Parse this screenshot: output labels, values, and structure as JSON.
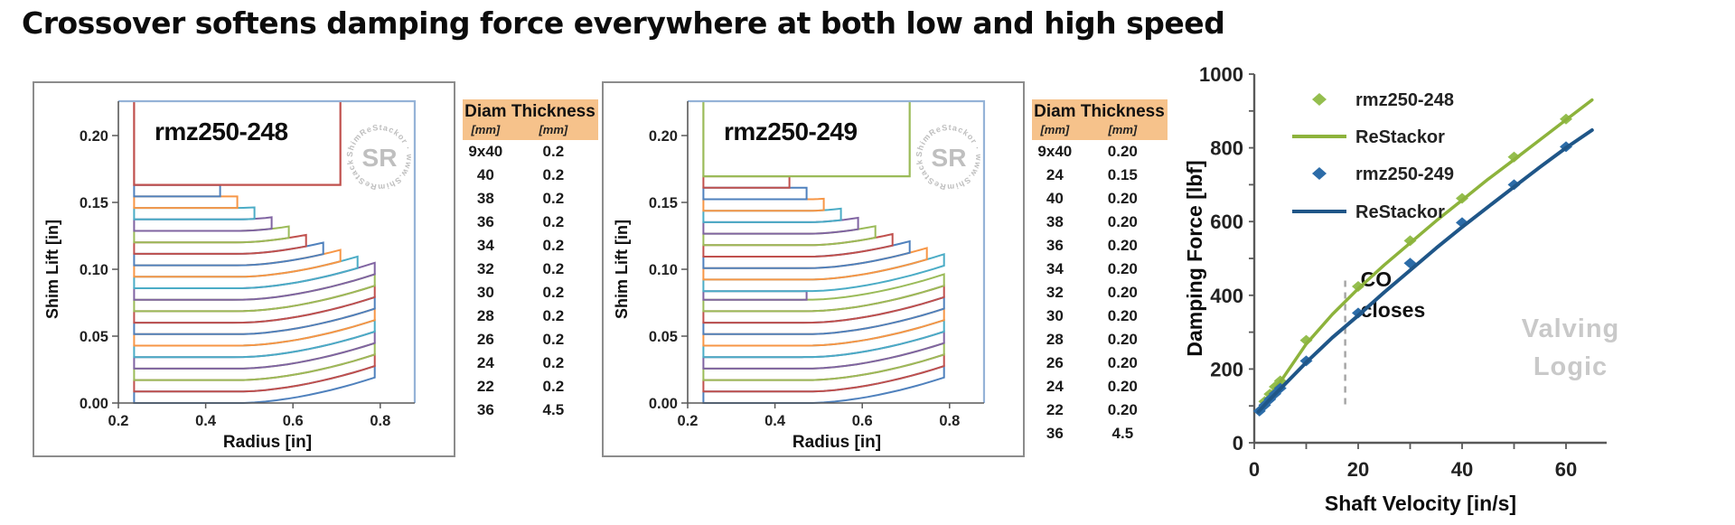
{
  "page_title": "Crossover softens damping force everywhere at both low and high speed",
  "palette": {
    "shim_colors": [
      "#4F81BD",
      "#C0504D",
      "#9BBB59",
      "#8064A2",
      "#4BACC6",
      "#F79646"
    ],
    "frame": "#95B3D7",
    "axis": "#595959",
    "table_header_bg": "#F6C28B",
    "annotation_gray": "#a6a6a6",
    "watermark_gray": "#c9c9c9",
    "logo_gray": "#b4b4b4"
  },
  "logo": {
    "ring_text": "ShimReStackor · www.ShimReStackor.com ·",
    "center_text": "SR"
  },
  "tables": [
    {
      "col1": "Diam",
      "col2": "Thickness",
      "unit1": "[mm]",
      "unit2": "[mm]",
      "rows": [
        [
          "9x40",
          "0.2"
        ],
        [
          "40",
          "0.2"
        ],
        [
          "38",
          "0.2"
        ],
        [
          "36",
          "0.2"
        ],
        [
          "34",
          "0.2"
        ],
        [
          "32",
          "0.2"
        ],
        [
          "30",
          "0.2"
        ],
        [
          "28",
          "0.2"
        ],
        [
          "26",
          "0.2"
        ],
        [
          "24",
          "0.2"
        ],
        [
          "22",
          "0.2"
        ],
        [
          "36",
          "4.5"
        ]
      ]
    },
    {
      "col1": "Diam",
      "col2": "Thickness",
      "unit1": "[mm]",
      "unit2": "[mm]",
      "rows": [
        [
          "9x40",
          "0.20"
        ],
        [
          "24",
          "0.15"
        ],
        [
          "40",
          "0.20"
        ],
        [
          "38",
          "0.20"
        ],
        [
          "36",
          "0.20"
        ],
        [
          "34",
          "0.20"
        ],
        [
          "32",
          "0.20"
        ],
        [
          "30",
          "0.20"
        ],
        [
          "28",
          "0.20"
        ],
        [
          "26",
          "0.20"
        ],
        [
          "24",
          "0.20"
        ],
        [
          "22",
          "0.20"
        ],
        [
          "36",
          "4.5"
        ]
      ]
    }
  ],
  "chart_data": [
    {
      "type": "shim-stack",
      "title": "rmz250-248",
      "xlabel": "Radius [in]",
      "ylabel": "Shim Lift [in]",
      "xlim": [
        0.2,
        0.879
      ],
      "ylim": [
        0,
        0.2257
      ],
      "x_ticks": [
        "0.2",
        "0.4",
        "0.6",
        "0.8"
      ],
      "y_ticks": [
        "0.00",
        "0.05",
        "0.10",
        "0.15",
        "0.20"
      ],
      "stack": [
        {
          "count": 9,
          "diam_mm": 40,
          "thick_mm": 0.2
        },
        {
          "count": 1,
          "diam_mm": 40,
          "thick_mm": 0.2
        },
        {
          "count": 1,
          "diam_mm": 38,
          "thick_mm": 0.2
        },
        {
          "count": 1,
          "diam_mm": 36,
          "thick_mm": 0.2
        },
        {
          "count": 1,
          "diam_mm": 34,
          "thick_mm": 0.2
        },
        {
          "count": 1,
          "diam_mm": 32,
          "thick_mm": 0.2
        },
        {
          "count": 1,
          "diam_mm": 30,
          "thick_mm": 0.2
        },
        {
          "count": 1,
          "diam_mm": 28,
          "thick_mm": 0.2
        },
        {
          "count": 1,
          "diam_mm": 26,
          "thick_mm": 0.2
        },
        {
          "count": 1,
          "diam_mm": 24,
          "thick_mm": 0.2
        },
        {
          "count": 1,
          "diam_mm": 22,
          "thick_mm": 0.2
        },
        {
          "count": 1,
          "diam_mm": 36,
          "thick_mm": 4.5,
          "role": "clamp"
        }
      ]
    },
    {
      "type": "shim-stack",
      "title": "rmz250-249",
      "xlabel": "Radius [in]",
      "ylabel": "Shim Lift [in]",
      "xlim": [
        0.2,
        0.879
      ],
      "ylim": [
        0,
        0.2257
      ],
      "x_ticks": [
        "0.2",
        "0.4",
        "0.6",
        "0.8"
      ],
      "y_ticks": [
        "0.00",
        "0.05",
        "0.10",
        "0.15",
        "0.20"
      ],
      "stack": [
        {
          "count": 9,
          "diam_mm": 40,
          "thick_mm": 0.2
        },
        {
          "count": 1,
          "diam_mm": 24,
          "thick_mm": 0.15,
          "role": "crossover"
        },
        {
          "count": 1,
          "diam_mm": 40,
          "thick_mm": 0.2
        },
        {
          "count": 1,
          "diam_mm": 38,
          "thick_mm": 0.2
        },
        {
          "count": 1,
          "diam_mm": 36,
          "thick_mm": 0.2
        },
        {
          "count": 1,
          "diam_mm": 34,
          "thick_mm": 0.2
        },
        {
          "count": 1,
          "diam_mm": 32,
          "thick_mm": 0.2
        },
        {
          "count": 1,
          "diam_mm": 30,
          "thick_mm": 0.2
        },
        {
          "count": 1,
          "diam_mm": 28,
          "thick_mm": 0.2
        },
        {
          "count": 1,
          "diam_mm": 26,
          "thick_mm": 0.2
        },
        {
          "count": 1,
          "diam_mm": 24,
          "thick_mm": 0.2
        },
        {
          "count": 1,
          "diam_mm": 22,
          "thick_mm": 0.2
        },
        {
          "count": 1,
          "diam_mm": 36,
          "thick_mm": 4.5,
          "role": "clamp"
        }
      ]
    },
    {
      "type": "line+scatter",
      "xlabel": "Shaft Velocity [in/s]",
      "ylabel": "Damping Force [lbf]",
      "xlim": [
        0,
        68
      ],
      "ylim": [
        0,
        1000
      ],
      "x_ticks": [
        0,
        20,
        40,
        60
      ],
      "y_ticks": [
        0,
        200,
        400,
        600,
        800,
        1000
      ],
      "legend": [
        {
          "label": "rmz250-248",
          "swatch": "diamond",
          "color": "#94BE4E"
        },
        {
          "label": "ReStackor",
          "swatch": "line",
          "color": "#8DB33C"
        },
        {
          "label": "rmz250-249",
          "swatch": "diamond",
          "color": "#2C6CA8"
        },
        {
          "label": "ReStackor",
          "swatch": "line",
          "color": "#1F5688"
        }
      ],
      "series": [
        {
          "name": "rmz250-248",
          "type": "scatter",
          "color": "#94BE4E",
          "points": [
            [
              2,
              112
            ],
            [
              3,
              132
            ],
            [
              4,
              152
            ],
            [
              5,
              168
            ],
            [
              10,
              278
            ],
            [
              20,
              424
            ],
            [
              30,
              548
            ],
            [
              40,
              663
            ],
            [
              50,
              775
            ],
            [
              60,
              878
            ]
          ]
        },
        {
          "name": "ReStackor",
          "type": "line",
          "color": "#8DB33C",
          "points": [
            [
              0.8,
              92
            ],
            [
              3,
              130
            ],
            [
              5,
              165
            ],
            [
              10,
              268
            ],
            [
              15,
              348
            ],
            [
              20,
              418
            ],
            [
              25,
              482
            ],
            [
              30,
              542
            ],
            [
              35,
              602
            ],
            [
              40,
              658
            ],
            [
              45,
              715
            ],
            [
              50,
              768
            ],
            [
              55,
              822
            ],
            [
              60,
              876
            ],
            [
              65,
              930
            ]
          ]
        },
        {
          "name": "rmz250-249",
          "type": "scatter",
          "color": "#2C6CA8",
          "points": [
            [
              1,
              86
            ],
            [
              2,
              102
            ],
            [
              3,
              118
            ],
            [
              4,
              133
            ],
            [
              5,
              148
            ],
            [
              10,
              222
            ],
            [
              20,
              352
            ],
            [
              30,
              487
            ],
            [
              40,
              597
            ],
            [
              50,
              700
            ],
            [
              60,
              803
            ]
          ]
        },
        {
          "name": "ReStackor",
          "type": "line",
          "color": "#1F5688",
          "points": [
            [
              0.8,
              84
            ],
            [
              3,
              118
            ],
            [
              5,
              146
            ],
            [
              10,
              218
            ],
            [
              15,
              285
            ],
            [
              20,
              345
            ],
            [
              25,
              408
            ],
            [
              30,
              468
            ],
            [
              35,
              528
            ],
            [
              40,
              585
            ],
            [
              45,
              640
            ],
            [
              50,
              694
            ],
            [
              55,
              748
            ],
            [
              60,
              800
            ],
            [
              65,
              848
            ]
          ]
        }
      ],
      "annotations": {
        "co_line_x": 17.5,
        "co_label_line1": "CO",
        "co_label_line2": "closes",
        "watermark_line1": "Valving",
        "watermark_line2": "Logic"
      }
    }
  ]
}
